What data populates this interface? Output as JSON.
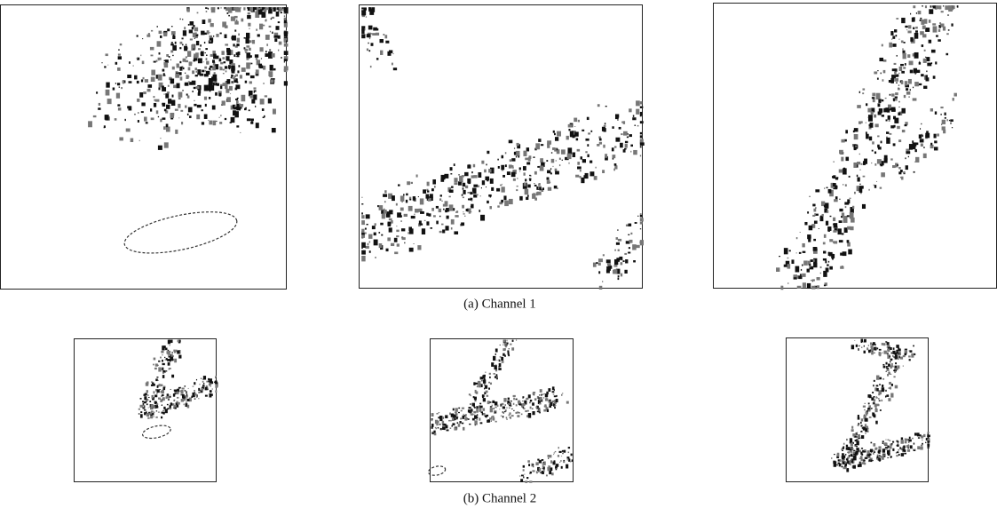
{
  "figure": {
    "subfigures": [
      {
        "caption": "(a) Channel 1"
      },
      {
        "caption": "(b) Channel 2"
      }
    ]
  }
}
